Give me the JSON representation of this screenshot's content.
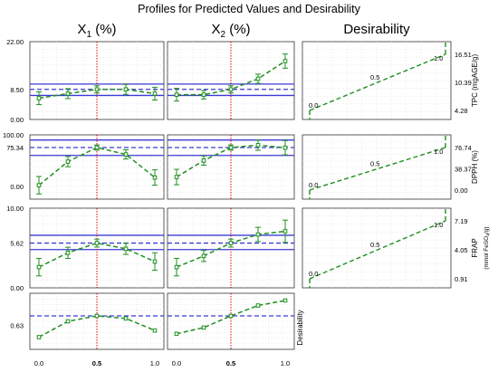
{
  "title": "Profiles for Predicted Values and Desirability",
  "chart_data": {
    "type": "line",
    "title": "Profiles for Predicted Values and Desirability",
    "factors": [
      {
        "name": "X",
        "sub": "1",
        "unit": " (%)"
      },
      {
        "name": "X",
        "sub": "2",
        "unit": " (%)"
      }
    ],
    "desirability_title": "Desirability",
    "x_tick_labels": [
      "0.0",
      "0.5",
      "1.0"
    ],
    "x_levels": [
      0.0,
      0.25,
      0.5,
      0.75,
      1.0
    ],
    "current_x": 0.5,
    "responses": [
      {
        "name": "TPC (mgAGE/g)",
        "ylim": [
          0,
          22
        ],
        "yticks": [
          "0.00",
          "8.50",
          "22.00"
        ],
        "band": [
          6.8,
          8.5,
          10.0
        ],
        "x1": {
          "values": [
            6.0,
            7.3,
            8.5,
            8.5,
            7.3
          ],
          "err": [
            1.8,
            1.4,
            1.0,
            1.4,
            1.8
          ]
        },
        "x2": {
          "values": [
            7.0,
            7.0,
            8.5,
            11.5,
            16.5
          ],
          "err": [
            1.8,
            1.2,
            1.0,
            1.3,
            2.0
          ]
        },
        "desirability": {
          "yticks": [
            "4.28",
            "10.39",
            "16.51"
          ],
          "low": "0.0",
          "mid": "0.5",
          "high": "1.0"
        }
      },
      {
        "name": "DPPH (%)",
        "ylim": [
          -25,
          100
        ],
        "yticks": [
          "0.00",
          "75.34",
          "100.00"
        ],
        "band": [
          60,
          75.34,
          90
        ],
        "x1": {
          "values": [
            2,
            48,
            75.34,
            62,
            17
          ],
          "err": [
            17,
            10,
            5,
            9,
            15
          ]
        },
        "x2": {
          "values": [
            18,
            50,
            75.34,
            80,
            75
          ],
          "err": [
            15,
            9,
            5,
            10,
            14
          ]
        },
        "desirability": {
          "yticks": [
            "0.00",
            "38.37",
            "76.74"
          ],
          "low": "0.0",
          "mid": "0.5",
          "high": "1.0"
        }
      },
      {
        "name": "FRAP",
        "unit": "(mmol FeSO",
        "unit_sub": "4",
        "unit_end": "/g)",
        "ylim": [
          0,
          10
        ],
        "yticks": [
          "0.00",
          "5.62",
          "10.00"
        ],
        "band": [
          4.8,
          5.62,
          6.6
        ],
        "x1": {
          "values": [
            2.6,
            4.4,
            5.62,
            4.9,
            3.3
          ],
          "err": [
            1.1,
            0.7,
            0.5,
            0.7,
            1.1
          ]
        },
        "x2": {
          "values": [
            2.6,
            4.0,
            5.62,
            6.7,
            7.1
          ],
          "err": [
            1.1,
            0.7,
            0.5,
            0.9,
            1.4
          ]
        },
        "desirability": {
          "yticks": [
            "0.91",
            "4.05",
            "7.19"
          ],
          "low": "0.0",
          "mid": "0.5",
          "high": "1.0"
        }
      }
    ],
    "overall": {
      "name": "Desirability",
      "ylim": [
        0,
        1
      ],
      "ytick": "0.63",
      "current": 0.63,
      "x1": [
        0.12,
        0.5,
        0.63,
        0.57,
        0.28
      ],
      "x2": [
        0.2,
        0.35,
        0.63,
        0.88,
        1.0
      ]
    },
    "colors": {
      "mean": "#1f8f1f",
      "band": "#3b3bd6",
      "cursor": "#dd0000"
    }
  }
}
